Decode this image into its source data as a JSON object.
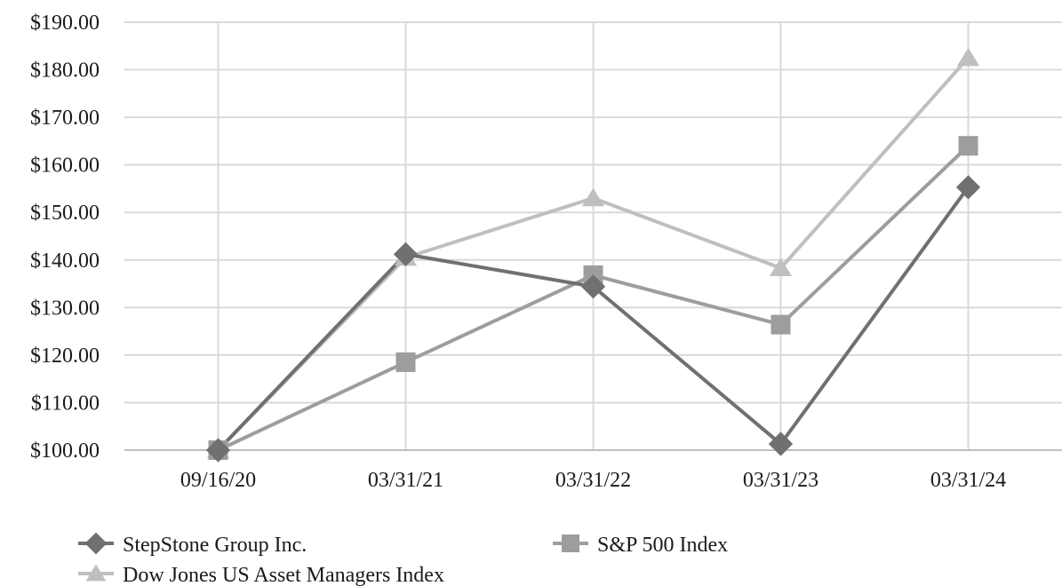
{
  "chart_data": {
    "type": "line",
    "title": "",
    "xlabel": "",
    "ylabel": "",
    "categories": [
      "09/16/20",
      "03/31/21",
      "03/31/22",
      "03/31/23",
      "03/31/24"
    ],
    "y_tick_labels": [
      "$100.00",
      "$110.00",
      "$120.00",
      "$130.00",
      "$140.00",
      "$150.00",
      "$160.00",
      "$170.00",
      "$180.00",
      "$190.00"
    ],
    "ylim": [
      100,
      190
    ],
    "y_step": 10,
    "grid": "both",
    "legend_position": "bottom",
    "series": [
      {
        "name": "StepStone Group Inc.",
        "marker": "diamond",
        "color": "#707070",
        "values": [
          100.0,
          141.2,
          134.4,
          101.3,
          155.3
        ]
      },
      {
        "name": "S&P 500 Index",
        "marker": "square",
        "color": "#9d9d9d",
        "values": [
          100.0,
          118.5,
          136.8,
          126.4,
          164.0
        ]
      },
      {
        "name": "Dow Jones US Asset Managers Index",
        "marker": "triangle",
        "color": "#bfbfbf",
        "values": [
          100.0,
          140.5,
          153.0,
          138.3,
          182.5
        ]
      }
    ]
  }
}
